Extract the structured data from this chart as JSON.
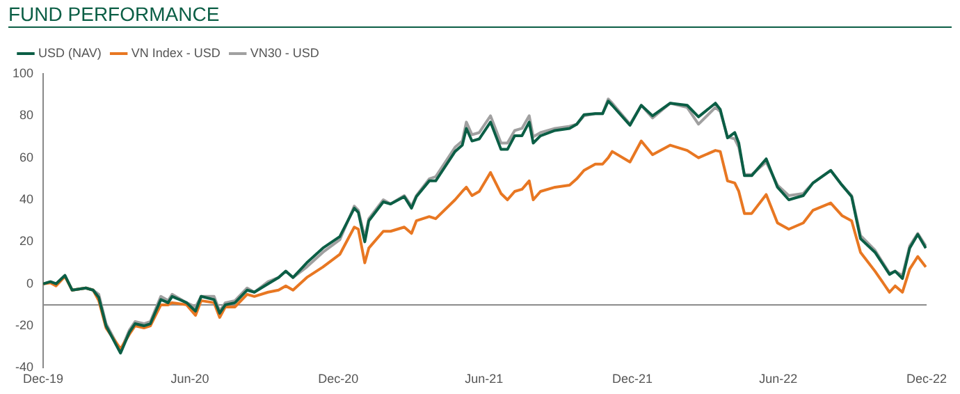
{
  "chart_data": {
    "type": "line",
    "title": "FUND PERFORMANCE",
    "x": [
      "2019-12-31",
      "2020-01-09",
      "2020-01-16",
      "2020-01-27",
      "2020-02-05",
      "2020-02-22",
      "2020-03-02",
      "2020-03-09",
      "2020-03-18",
      "2020-04-05",
      "2020-04-16",
      "2020-04-23",
      "2020-05-04",
      "2020-05-12",
      "2020-05-25",
      "2020-06-03",
      "2020-06-08",
      "2020-06-26",
      "2020-07-07",
      "2020-07-14",
      "2020-07-30",
      "2020-08-06",
      "2020-08-13",
      "2020-08-25",
      "2020-09-09",
      "2020-09-18",
      "2020-10-05",
      "2020-10-18",
      "2020-10-27",
      "2020-11-05",
      "2020-11-22",
      "2020-12-12",
      "2021-01-02",
      "2021-01-20",
      "2021-01-25",
      "2021-02-02",
      "2021-02-07",
      "2021-02-25",
      "2021-03-06",
      "2021-03-23",
      "2021-04-01",
      "2021-04-07",
      "2021-04-23",
      "2021-05-01",
      "2021-05-25",
      "2021-06-03",
      "2021-06-08",
      "2021-06-15",
      "2021-06-24",
      "2021-07-08",
      "2021-07-21",
      "2021-07-29",
      "2021-08-07",
      "2021-08-16",
      "2021-08-25",
      "2021-08-30",
      "2021-09-08",
      "2021-09-26",
      "2021-10-14",
      "2021-10-23",
      "2021-11-01",
      "2021-11-15",
      "2021-11-24",
      "2021-12-01",
      "2021-12-06",
      "2021-12-28",
      "2022-01-11",
      "2022-01-25",
      "2022-02-16",
      "2022-03-09",
      "2022-03-23",
      "2022-04-13",
      "2022-04-19",
      "2022-04-28",
      "2022-05-07",
      "2022-05-12",
      "2022-05-19",
      "2022-05-28",
      "2022-06-15",
      "2022-06-29",
      "2022-07-13",
      "2022-07-31",
      "2022-08-12",
      "2022-09-03",
      "2022-09-17",
      "2022-09-29",
      "2022-10-10",
      "2022-10-28",
      "2022-11-15",
      "2022-11-22",
      "2022-12-01",
      "2022-12-10",
      "2022-12-20",
      "2022-12-30"
    ],
    "series": [
      {
        "name": "USD (NAV)",
        "color": "#0b5e45",
        "values": [
          0,
          1,
          0,
          4,
          -3,
          -2,
          -3,
          -6.5,
          -20,
          -33,
          -23,
          -19,
          -20,
          -19,
          -7.5,
          -9,
          -6,
          -9,
          -13,
          -6,
          -7.5,
          -14,
          -10,
          -9,
          -3,
          -4,
          0,
          3,
          6,
          3,
          10,
          17,
          22.5,
          36,
          34,
          20,
          30,
          39,
          38,
          41.5,
          36,
          41.5,
          49,
          49,
          63,
          66,
          74,
          68,
          69,
          77,
          64,
          64,
          70.5,
          70.5,
          77,
          67,
          70.5,
          73,
          74,
          76,
          80.5,
          81,
          81,
          87,
          85,
          75.5,
          85,
          80,
          86,
          85,
          79.5,
          86,
          83,
          69.5,
          72,
          67,
          51.5,
          51.5,
          59.5,
          46,
          40,
          42,
          48,
          54,
          47,
          41.5,
          21.5,
          15,
          4.5,
          6,
          2.5,
          17,
          23.5,
          17
        ]
      },
      {
        "name": "VN Index - USD",
        "color": "#e87722",
        "values": [
          0,
          0.5,
          -1,
          3.5,
          -3,
          -2,
          -3,
          -8,
          -21,
          -31,
          -24,
          -20,
          -21,
          -20,
          -10,
          -10,
          -9,
          -10,
          -15,
          -8,
          -9,
          -16,
          -11,
          -11,
          -5,
          -6,
          -4,
          -3,
          -1,
          -3,
          3,
          8,
          14,
          27,
          26,
          10,
          17,
          25,
          25,
          27,
          24,
          30,
          32,
          31,
          40,
          44,
          46,
          42,
          44,
          53,
          43,
          40,
          44,
          45,
          49,
          40,
          44,
          46,
          47,
          50,
          54,
          57,
          57,
          60,
          63,
          58,
          68,
          61.5,
          66,
          63.5,
          60,
          63.5,
          63,
          49,
          48,
          44,
          33.5,
          33.5,
          42.5,
          29,
          26,
          29,
          35,
          38.5,
          32.5,
          30,
          15,
          6,
          -4,
          -1,
          -4,
          7,
          13,
          8
        ]
      },
      {
        "name": "VN30 - USD",
        "color": "#a0a0a0",
        "values": [
          0,
          1,
          0,
          4,
          -3,
          -2,
          -3,
          -5,
          -19,
          -32,
          -22,
          -18,
          -19,
          -18,
          -6,
          -8,
          -5,
          -9,
          -11,
          -6,
          -6,
          -13,
          -9,
          -8,
          -2,
          -4,
          1,
          3,
          6,
          3,
          8,
          15,
          21,
          37,
          35,
          22,
          31,
          40,
          38,
          42,
          37,
          42,
          50,
          51,
          65,
          68,
          77,
          71,
          72,
          80,
          67,
          67,
          73,
          74,
          80,
          70,
          72,
          74,
          75,
          76,
          80,
          81,
          81,
          88,
          86,
          76,
          85,
          79,
          86,
          84,
          76,
          84,
          82,
          70,
          69,
          65,
          52,
          52,
          58,
          47,
          42,
          43,
          48,
          54,
          47,
          42,
          23,
          16,
          5,
          6,
          4,
          18,
          24,
          18
        ]
      }
    ],
    "xlim": [
      "2019-12-31",
      "2022-12-31"
    ],
    "xticks": [
      {
        "value": "2019-12-31",
        "label": "Dec-19"
      },
      {
        "value": "2020-06-30",
        "label": "Jun-20"
      },
      {
        "value": "2020-12-31",
        "label": "Dec-20"
      },
      {
        "value": "2021-06-30",
        "label": "Jun-21"
      },
      {
        "value": "2021-12-31",
        "label": "Dec-21"
      },
      {
        "value": "2022-06-30",
        "label": "Jun-22"
      },
      {
        "value": "2022-12-31",
        "label": "Dec-22"
      }
    ],
    "ylim": [
      -40,
      100
    ],
    "yticks": [
      -40,
      -20,
      0,
      20,
      40,
      60,
      80,
      100
    ],
    "ref_lines": [
      {
        "axis": "y",
        "value": -10,
        "color": "#8c8c8c"
      }
    ],
    "grid": false,
    "legend": "top left",
    "marker": "none",
    "line_style": "solid"
  }
}
